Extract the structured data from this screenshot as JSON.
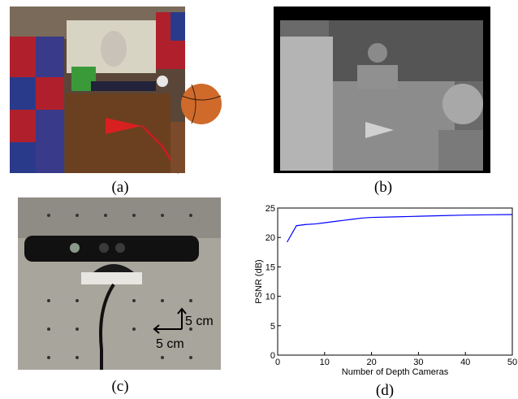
{
  "panels": [
    {
      "caption": "(a)"
    },
    {
      "caption": "(b)"
    },
    {
      "caption": "(c)",
      "annotations": [
        "5 cm",
        "5 cm"
      ]
    },
    {
      "caption": "(d)"
    }
  ],
  "chart_data": {
    "type": "line",
    "xlabel": "Number of Depth Cameras",
    "ylabel": "PSNR (dB)",
    "x": [
      2,
      4,
      6,
      8,
      10,
      12,
      14,
      16,
      18,
      20,
      25,
      30,
      35,
      40,
      45,
      50
    ],
    "series": [
      {
        "color": "#0000ff",
        "values": [
          19.2,
          22,
          22.2,
          22.3,
          22.5,
          22.7,
          22.9,
          23.1,
          23.3,
          23.4,
          23.5,
          23.6,
          23.7,
          23.8,
          23.85,
          23.9
        ]
      }
    ],
    "xlim": [
      0,
      50
    ],
    "ylim": [
      0,
      25
    ],
    "xticks": [
      0,
      10,
      20,
      30,
      40,
      50
    ],
    "yticks": [
      0,
      5,
      10,
      15,
      20,
      25
    ]
  }
}
